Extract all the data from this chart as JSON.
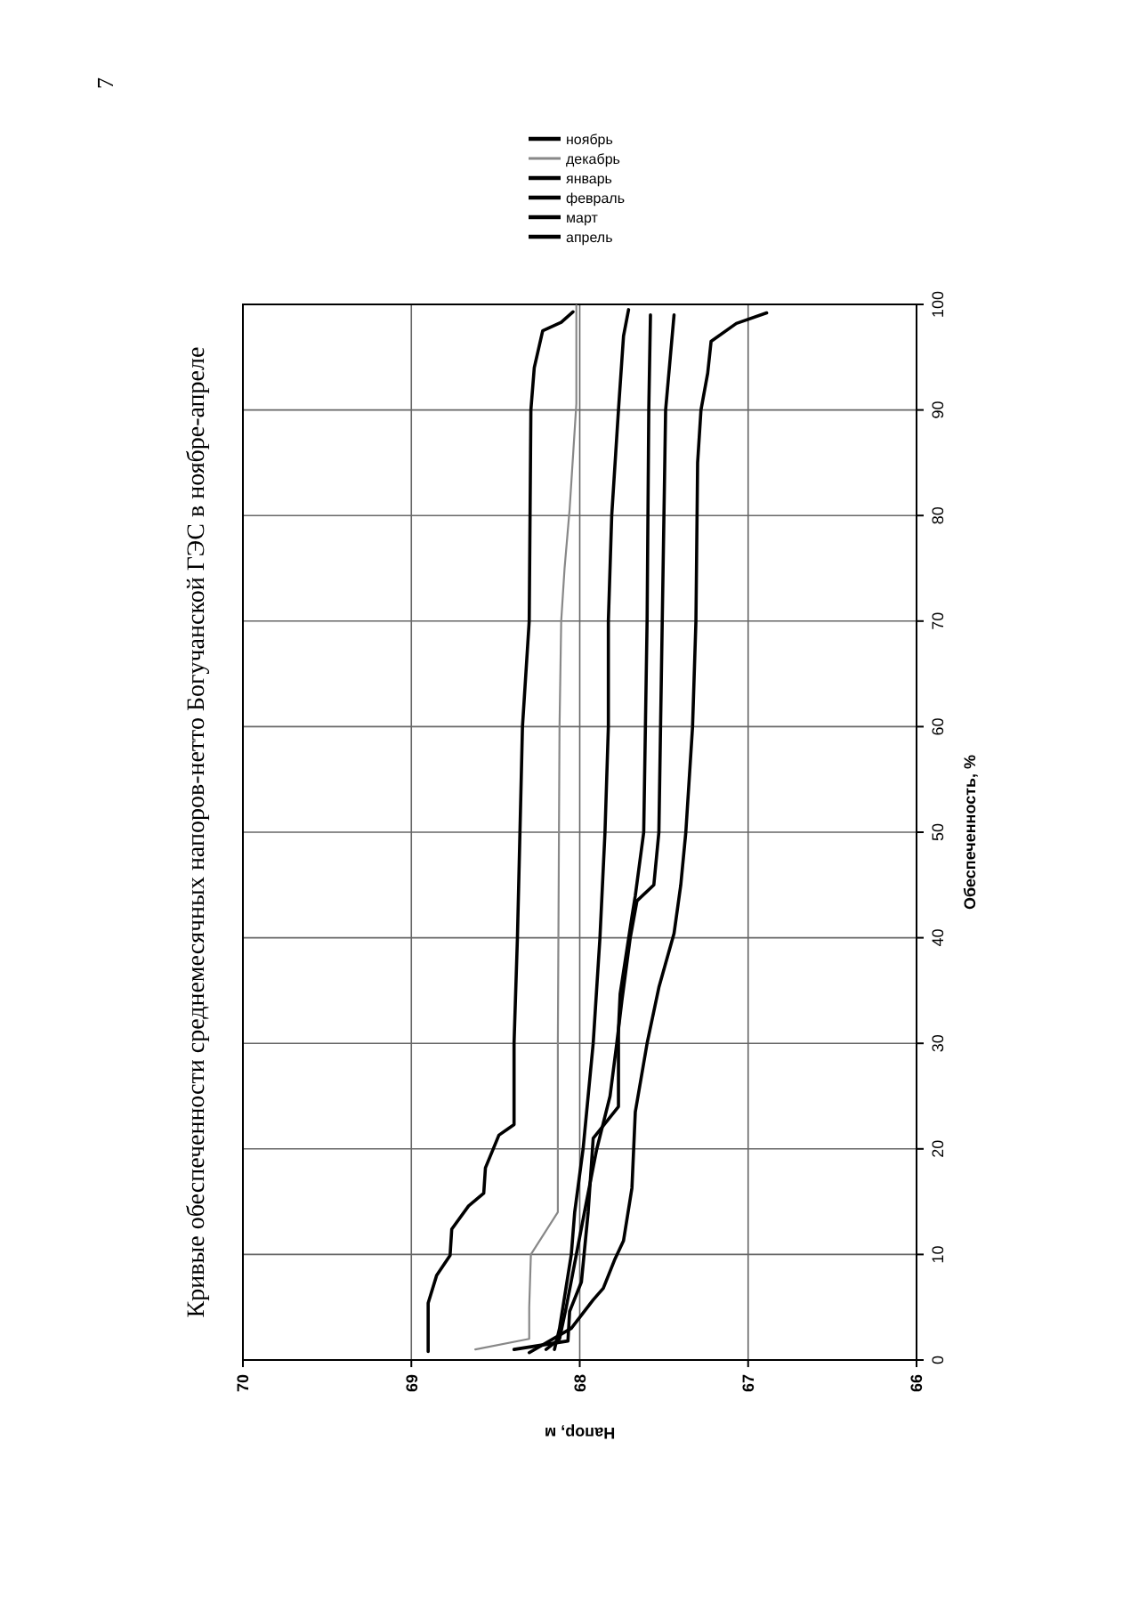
{
  "chart_data": {
    "type": "line",
    "title": "Кривые обеспеченности среднемесячных напоров-нетто Богучанской ГЭС  в ноябре-апреле",
    "xlabel": "Напор, м",
    "ylabel": "Обеспеченность, %",
    "annotations": [
      "7"
    ],
    "xlim": [
      70,
      66
    ],
    "xticks": [
      70,
      69,
      68,
      67,
      66
    ],
    "ylim": [
      0,
      100
    ],
    "yticks": [
      0,
      10,
      20,
      30,
      40,
      50,
      60,
      70,
      80,
      90,
      100
    ],
    "grid": true,
    "legend": "top",
    "line_style": "solid",
    "marker": "none",
    "series": [
      {
        "name": "ноябрь",
        "color": "#000000",
        "values": [
          0.8,
          5.4,
          8,
          9.9,
          12.4,
          14.6,
          15.8,
          18.2,
          21.3,
          22.3,
          30,
          40,
          60,
          70,
          90,
          94,
          97.5,
          98.3,
          99.3
        ],
        "x": [
          68.9,
          68.9,
          68.85,
          68.77,
          68.76,
          68.66,
          68.57,
          68.56,
          68.48,
          68.39,
          68.39,
          68.37,
          68.34,
          68.3,
          68.29,
          68.27,
          68.22,
          68.11,
          68.04
        ]
      },
      {
        "name": "декабрь",
        "color": "#888888",
        "values": [
          1,
          2,
          5,
          10,
          14,
          30,
          60,
          70,
          75,
          80.6,
          90.6,
          99.9
        ],
        "x": [
          68.62,
          68.3,
          68.3,
          68.29,
          68.13,
          68.13,
          68.12,
          68.11,
          68.09,
          68.06,
          68.02,
          68.02
        ]
      },
      {
        "name": "январь",
        "color": "#000000",
        "values": [
          1,
          3,
          5,
          10,
          14,
          20,
          25,
          30,
          40,
          50,
          60,
          70,
          80,
          90,
          97,
          99.5
        ],
        "x": [
          68.15,
          68.12,
          68.1,
          68.05,
          68.03,
          67.98,
          67.95,
          67.92,
          67.88,
          67.85,
          67.83,
          67.83,
          67.81,
          67.77,
          67.74,
          67.71
        ]
      },
      {
        "name": "февраль",
        "color": "#000000",
        "values": [
          1,
          1.8,
          4.6,
          7.4,
          14,
          21,
          24,
          31.3,
          34.7,
          42,
          44,
          50,
          60,
          70,
          90,
          99
        ],
        "x": [
          68.39,
          68.07,
          68.06,
          67.99,
          67.95,
          67.92,
          67.77,
          67.77,
          67.76,
          67.69,
          67.67,
          67.62,
          67.61,
          67.6,
          67.59,
          67.58
        ]
      },
      {
        "name": "март",
        "color": "#000000",
        "values": [
          1,
          2,
          5,
          10,
          15,
          19.9,
          25,
          30,
          34,
          40,
          43.5,
          45,
          50,
          60,
          70,
          90,
          99
        ],
        "x": [
          68.2,
          68.12,
          68.08,
          68.02,
          67.96,
          67.9,
          67.82,
          67.78,
          67.75,
          67.7,
          67.66,
          67.56,
          67.53,
          67.52,
          67.51,
          67.49,
          67.44
        ]
      },
      {
        "name": "апрель",
        "color": "#000000",
        "values": [
          0.7,
          3,
          5.7,
          6.8,
          9.6,
          11.3,
          16.3,
          23.5,
          30,
          35.3,
          40.4,
          45,
          50,
          60,
          70,
          85,
          90,
          93.5,
          96.5,
          98.2,
          99.2
        ],
        "x": [
          68.3,
          68.05,
          67.92,
          67.86,
          67.79,
          67.74,
          67.69,
          67.67,
          67.6,
          67.53,
          67.44,
          67.4,
          67.37,
          67.33,
          67.31,
          67.3,
          67.28,
          67.24,
          67.22,
          67.07,
          66.89
        ]
      }
    ]
  }
}
